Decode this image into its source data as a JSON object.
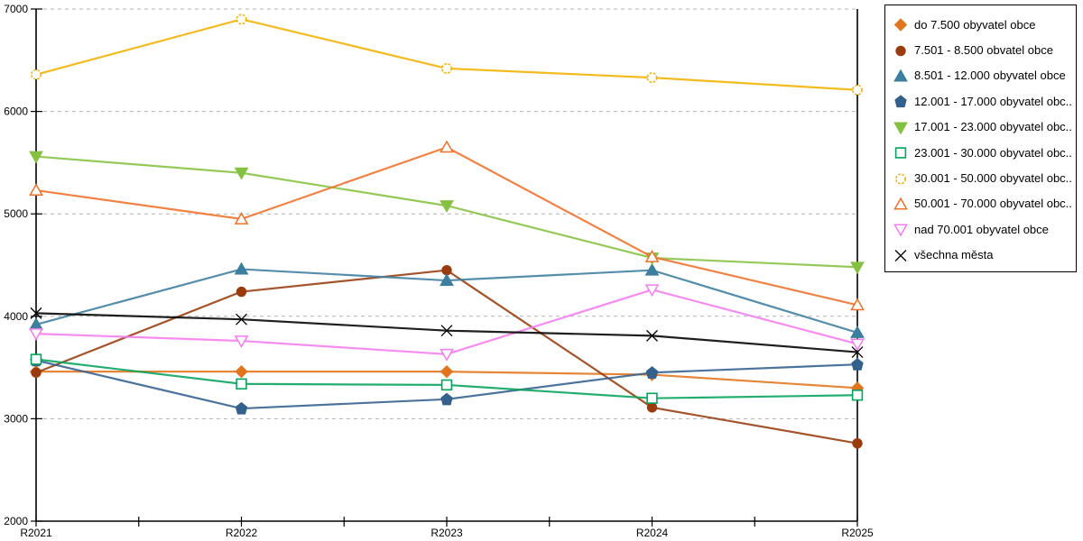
{
  "chart_data": {
    "type": "line",
    "title": "",
    "xlabel": "",
    "ylabel": "",
    "x_labels": [
      "R2021",
      "R2022",
      "R2023",
      "R2024",
      "R2025"
    ],
    "y_tick_labels": [
      "2000",
      "3000",
      "4000",
      "5000",
      "6000",
      "7000"
    ],
    "ylim": [
      2000,
      7000
    ],
    "grid": "horizontal-dashed",
    "legend_position": "right-outside",
    "series": [
      {
        "name": "do 7.500 obyvatel obce",
        "marker": "diamond",
        "style": "filled",
        "color": "#e1751d",
        "values": [
          3460,
          3460,
          3460,
          3430,
          3300
        ]
      },
      {
        "name": "7.501 - 8.500 obvatel obce",
        "marker": "circle",
        "style": "filled",
        "color": "#993b0d",
        "values": [
          3450,
          4240,
          4450,
          3110,
          2760
        ]
      },
      {
        "name": "8.501 - 12.000 obyvatel obce",
        "marker": "triangle-up",
        "style": "filled",
        "color": "#3c7e9e",
        "values": [
          3920,
          4460,
          4350,
          4450,
          3840
        ]
      },
      {
        "name": "12.001 - 17.000 obyvatel obc...",
        "marker": "pentagon",
        "style": "filled",
        "color": "#33608d",
        "values": [
          3570,
          3100,
          3190,
          3450,
          3530
        ]
      },
      {
        "name": "17.001 - 23.000 obyvatel obc...",
        "marker": "triangle-down",
        "style": "filled",
        "color": "#85c141",
        "values": [
          5560,
          5400,
          5080,
          4570,
          4480
        ]
      },
      {
        "name": "23.001 - 30.000 obyvatel obc...",
        "marker": "square",
        "style": "open",
        "color": "#04a35c",
        "values": [
          3580,
          3340,
          3330,
          3200,
          3230
        ]
      },
      {
        "name": "30.001 - 50.000 obyvatel obc...",
        "marker": "circle",
        "style": "open",
        "color": "#f2b200",
        "values": [
          6360,
          6900,
          6420,
          6330,
          6210
        ]
      },
      {
        "name": "50.001 - 70.000 obyvatel obc...",
        "marker": "triangle-up",
        "style": "open",
        "color": "#f0702a",
        "values": [
          5230,
          4950,
          5650,
          4580,
          4110
        ]
      },
      {
        "name": "nad 70.001 obyvatel obce",
        "marker": "triangle-down",
        "style": "open",
        "color": "#f57cf0",
        "values": [
          3830,
          3760,
          3630,
          4260,
          3730
        ]
      },
      {
        "name": "všechna města",
        "marker": "x",
        "style": "line",
        "color": "#000000",
        "values": [
          4030,
          3970,
          3860,
          3810,
          3650
        ]
      }
    ],
    "axis_color": "#000000",
    "gridline_color": "#b3b3b3"
  }
}
